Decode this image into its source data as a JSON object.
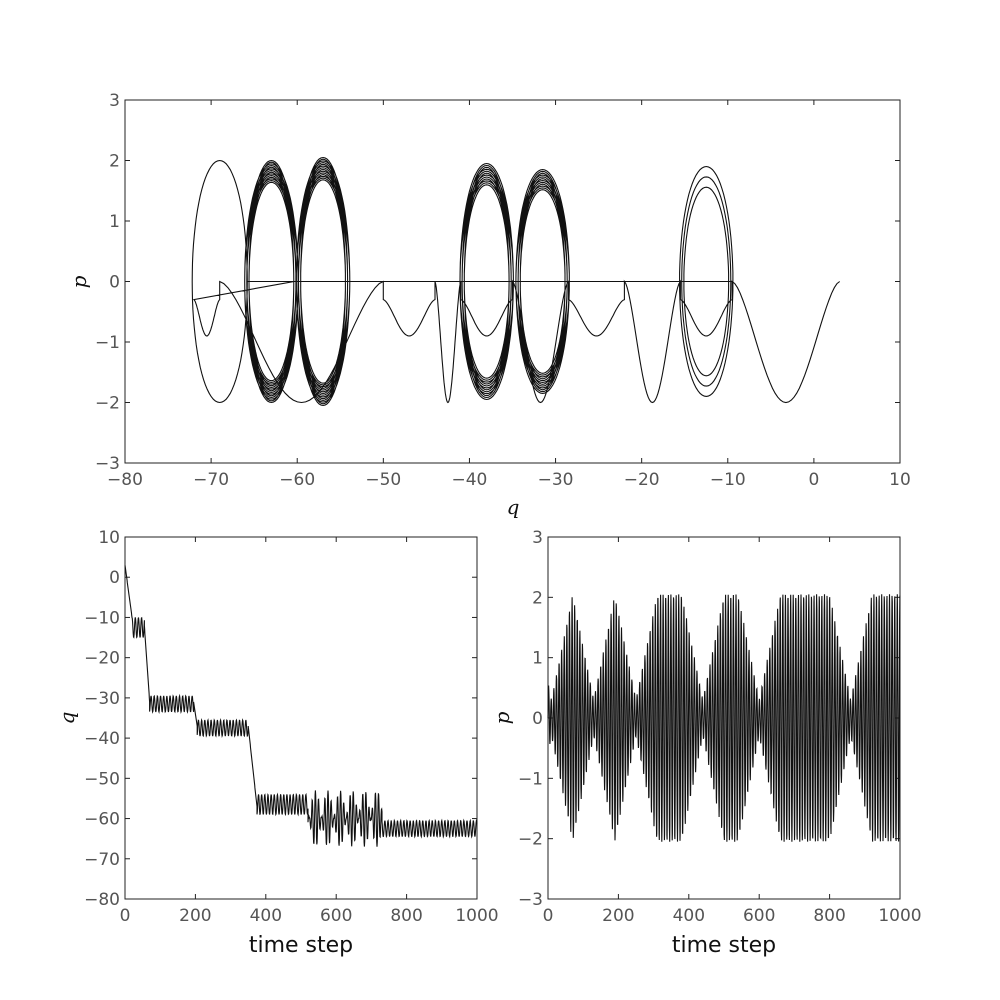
{
  "chart_data": [
    {
      "type": "line",
      "title": "",
      "xlabel": "q",
      "ylabel": "p",
      "xlim": [
        -80,
        10
      ],
      "ylim": [
        -3,
        3
      ],
      "xticks": [
        -80,
        -70,
        -60,
        -50,
        -40,
        -30,
        -20,
        -10,
        0,
        10
      ],
      "yticks": [
        -3,
        -2,
        -1,
        0,
        1,
        2,
        3
      ],
      "xtick_labels": [
        "−80",
        "−70",
        "−60",
        "−50",
        "−40",
        "−30",
        "−20",
        "−10",
        "0",
        "10"
      ],
      "ytick_labels": [
        "−3",
        "−2",
        "−1",
        "0",
        "1",
        "2",
        "3"
      ],
      "grid": false,
      "description_of_series": "phase-space trajectory",
      "series": [
        {
          "start": [
            3,
            0
          ],
          "end_region_q": -72,
          "loops": [
            {
              "center_q": -63,
              "amplitude_p": 2.0,
              "count": 14
            },
            {
              "center_q": -57,
              "amplitude_p": 2.05,
              "count": 14
            },
            {
              "center_q": -38,
              "amplitude_p": 1.95,
              "count": 12
            },
            {
              "center_q": -31.5,
              "amplitude_p": 1.85,
              "count": 12
            },
            {
              "center_q": -12.5,
              "amplitude_p": 1.9,
              "count": 3
            }
          ],
          "free_humps_q": [
            -3,
            -9.5,
            -15.5,
            -22,
            -28.5,
            -35,
            -41,
            -44,
            -50,
            -69
          ]
        }
      ]
    },
    {
      "type": "line",
      "title": "",
      "xlabel": "time step",
      "ylabel": "q",
      "xlim": [
        0,
        1000
      ],
      "ylim": [
        -80,
        10
      ],
      "xticks": [
        0,
        200,
        400,
        600,
        800,
        1000
      ],
      "yticks": [
        -80,
        -70,
        -60,
        -50,
        -40,
        -30,
        -20,
        -10,
        0,
        10
      ],
      "xtick_labels": [
        "0",
        "200",
        "400",
        "600",
        "800",
        "1000"
      ],
      "ytick_labels": [
        "−80",
        "−70",
        "−60",
        "−50",
        "−40",
        "−30",
        "−20",
        "−10",
        "0",
        "10"
      ],
      "grid": false,
      "segments": [
        {
          "t": [
            0,
            20
          ],
          "from": 3,
          "to": -10
        },
        {
          "t": [
            20,
            55
          ],
          "level": -12.5,
          "osc": 2.5
        },
        {
          "t": [
            55,
            70
          ],
          "from": -12,
          "to": -31
        },
        {
          "t": [
            70,
            195
          ],
          "level": -31.5,
          "osc": 2
        },
        {
          "t": [
            195,
            205
          ],
          "from": -31,
          "to": -37
        },
        {
          "t": [
            205,
            350
          ],
          "level": -37.5,
          "osc": 2
        },
        {
          "t": [
            350,
            375
          ],
          "from": -37,
          "to": -57
        },
        {
          "t": [
            375,
            520
          ],
          "level": -56.5,
          "osc": 2.5
        },
        {
          "t": [
            520,
            730
          ],
          "level": -60,
          "osc": 7
        },
        {
          "t": [
            730,
            1000
          ],
          "level": -62.5,
          "osc": 2
        }
      ]
    },
    {
      "type": "line",
      "title": "",
      "xlabel": "time step",
      "ylabel": "p",
      "xlim": [
        0,
        1000
      ],
      "ylim": [
        -3,
        3
      ],
      "xticks": [
        0,
        200,
        400,
        600,
        800,
        1000
      ],
      "yticks": [
        -3,
        -2,
        -1,
        0,
        1,
        2,
        3
      ],
      "xtick_labels": [
        "0",
        "200",
        "400",
        "600",
        "800",
        "1000"
      ],
      "ytick_labels": [
        "−3",
        "−2",
        "−1",
        "0",
        "1",
        "2",
        "3"
      ],
      "grid": false,
      "oscillation": {
        "amplitude_max": 2.05,
        "amplitude_min": 0.3,
        "envelope_minima_t": [
          10,
          130,
          250,
          440,
          600,
          860
        ]
      }
    }
  ]
}
